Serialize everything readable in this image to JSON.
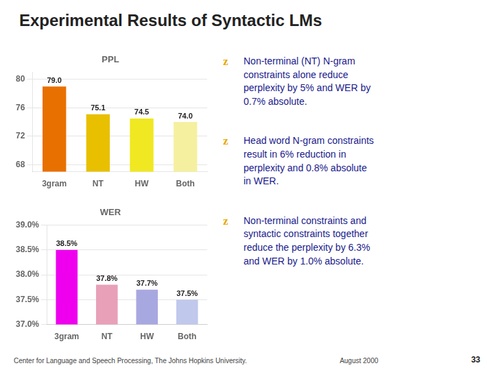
{
  "title": "Experimental Results of Syntactic LMs",
  "bullet_symbol": "z",
  "annotations": [
    "Non-terminal (NT) N-gram\nconstraints alone reduce\nperplexity by 5% and WER by\n0.7% absolute.",
    "Head word N-gram constraints\nresult in 6% reduction in\nperplexity and 0.8% absolute\nin WER.",
    "Non-terminal constraints and\nsyntactic constraints together\nreduce the perplexity by 6.3%\nand WER by 1.0% absolute.",
    "Center for Language and Speech Processing,  The Johns Hopkins University.",
    "August 2000",
    "33"
  ],
  "chart_data": [
    {
      "type": "bar",
      "title": "PPL",
      "categories": [
        "3gram",
        "NT",
        "HW",
        "Both"
      ],
      "values": [
        79.0,
        75.1,
        74.5,
        74.0
      ],
      "value_labels": [
        "79.0",
        "75.1",
        "74.5",
        "74.0"
      ],
      "colors": [
        "#e87000",
        "#e8c000",
        "#f0e820",
        "#f5f0a0"
      ],
      "ylim": [
        67.0,
        81.0
      ],
      "yticks": [
        68,
        72,
        76,
        80
      ],
      "grid": true,
      "data_labels": true
    },
    {
      "type": "bar",
      "title": "WER",
      "categories": [
        "3gram",
        "NT",
        "HW",
        "Both"
      ],
      "values": [
        38.5,
        37.8,
        37.7,
        37.5
      ],
      "value_labels": [
        "38.5%",
        "37.8%",
        "37.7%",
        "37.5%"
      ],
      "colors": [
        "#ee00ee",
        "#e8a0b8",
        "#a8a8e0",
        "#c0c8ec"
      ],
      "ylim": [
        37.0,
        39.0
      ],
      "yticks": [
        {
          "value": 37.0,
          "label": "37.0%"
        },
        {
          "value": 37.5,
          "label": "37.5%"
        },
        {
          "value": 38.0,
          "label": "38.0%"
        },
        {
          "value": 38.5,
          "label": "38.5%"
        },
        {
          "value": 39.0,
          "label": "39.0%"
        }
      ],
      "grid": true,
      "data_labels": true
    }
  ]
}
